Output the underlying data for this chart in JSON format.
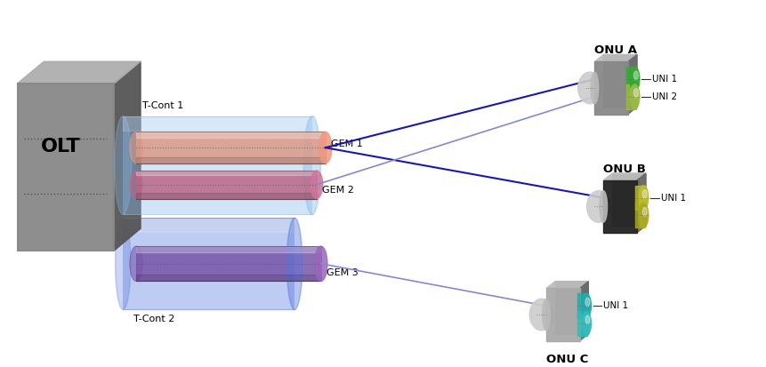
{
  "background_color": "#ffffff",
  "olt_label": "OLT",
  "tcont1_label": "T-Cont 1",
  "tcont2_label": "T-Cont 2",
  "gem1_label": "GEM 1",
  "gem2_label": "GEM 2",
  "gem3_label": "GEM 3",
  "onua_label": "ONU A",
  "onub_label": "ONU B",
  "onuc_label": "ONU C",
  "uni1_label": "UNI 1",
  "uni2_label": "UNI 2",
  "line_color_dark": "#1a1aaa",
  "line_color_light": "#8888cc",
  "olt_front_color": "#888888",
  "olt_top_color": "#aaaaaa",
  "olt_side_color": "#555555",
  "tcont1_color": "#88bbee",
  "tcont2_color": "#5577dd",
  "gem1_body": "#dd9988",
  "gem1_end": "#ee9980",
  "gem2_body": "#bb6688",
  "gem2_end": "#cc7799",
  "gem3_body": "#7755aa",
  "gem3_end": "#9966bb",
  "onua_body": "#888888",
  "onub_body": "#222222",
  "onuc_body": "#aaaaaa",
  "onua_disk1": "#33aa33",
  "onua_disk2": "#99bb44",
  "onub_disk1": "#bbbb33",
  "onub_disk2": "#aaaa22",
  "onuc_disk1": "#22aaaa",
  "onuc_disk2": "#33bbbb",
  "port_color": "#aaaaaa"
}
